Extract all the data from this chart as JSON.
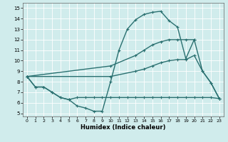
{
  "xlabel": "Humidex (Indice chaleur)",
  "xlim": [
    -0.5,
    23.5
  ],
  "ylim": [
    4.7,
    15.5
  ],
  "xticks": [
    0,
    1,
    2,
    3,
    4,
    5,
    6,
    7,
    8,
    9,
    10,
    11,
    12,
    13,
    14,
    15,
    16,
    17,
    18,
    19,
    20,
    21,
    22,
    23
  ],
  "yticks": [
    5,
    6,
    7,
    8,
    9,
    10,
    11,
    12,
    13,
    14,
    15
  ],
  "bg_color": "#d0ecec",
  "line_color": "#2a7070",
  "grid_color": "#e0f0f0",
  "line1_x": [
    0,
    1,
    2,
    3,
    4,
    5,
    6,
    7,
    8,
    9,
    10,
    11,
    12,
    13,
    14,
    15,
    16,
    17,
    18,
    19,
    20,
    21,
    22,
    23
  ],
  "line1_y": [
    8.5,
    7.5,
    7.5,
    7.0,
    6.5,
    6.3,
    5.7,
    5.5,
    5.2,
    5.2,
    8.0,
    11.0,
    13.0,
    13.9,
    14.4,
    14.6,
    14.7,
    13.8,
    13.2,
    10.2,
    12.0,
    9.0,
    7.9,
    6.4
  ],
  "line2_x": [
    0,
    1,
    2,
    3,
    4,
    5,
    6,
    7,
    8,
    9,
    10,
    11,
    12,
    13,
    14,
    15,
    16,
    17,
    18,
    19,
    20,
    21,
    22,
    23
  ],
  "line2_y": [
    8.5,
    7.5,
    7.5,
    7.0,
    6.5,
    6.3,
    6.5,
    6.5,
    6.5,
    6.5,
    6.5,
    6.5,
    6.5,
    6.5,
    6.5,
    6.5,
    6.5,
    6.5,
    6.5,
    6.5,
    6.5,
    6.5,
    6.5,
    6.4
  ],
  "line3_x": [
    0,
    10,
    13,
    14,
    15,
    16,
    17,
    18,
    19,
    20,
    21,
    22,
    23
  ],
  "line3_y": [
    8.5,
    8.5,
    9.0,
    9.2,
    9.5,
    9.8,
    10.0,
    10.1,
    10.1,
    10.5,
    9.0,
    7.9,
    6.4
  ],
  "line4_x": [
    0,
    10,
    13,
    14,
    15,
    16,
    17,
    18,
    19,
    20
  ],
  "line4_y": [
    8.5,
    9.5,
    10.5,
    11.0,
    11.5,
    11.8,
    12.0,
    12.0,
    12.0,
    12.0
  ]
}
